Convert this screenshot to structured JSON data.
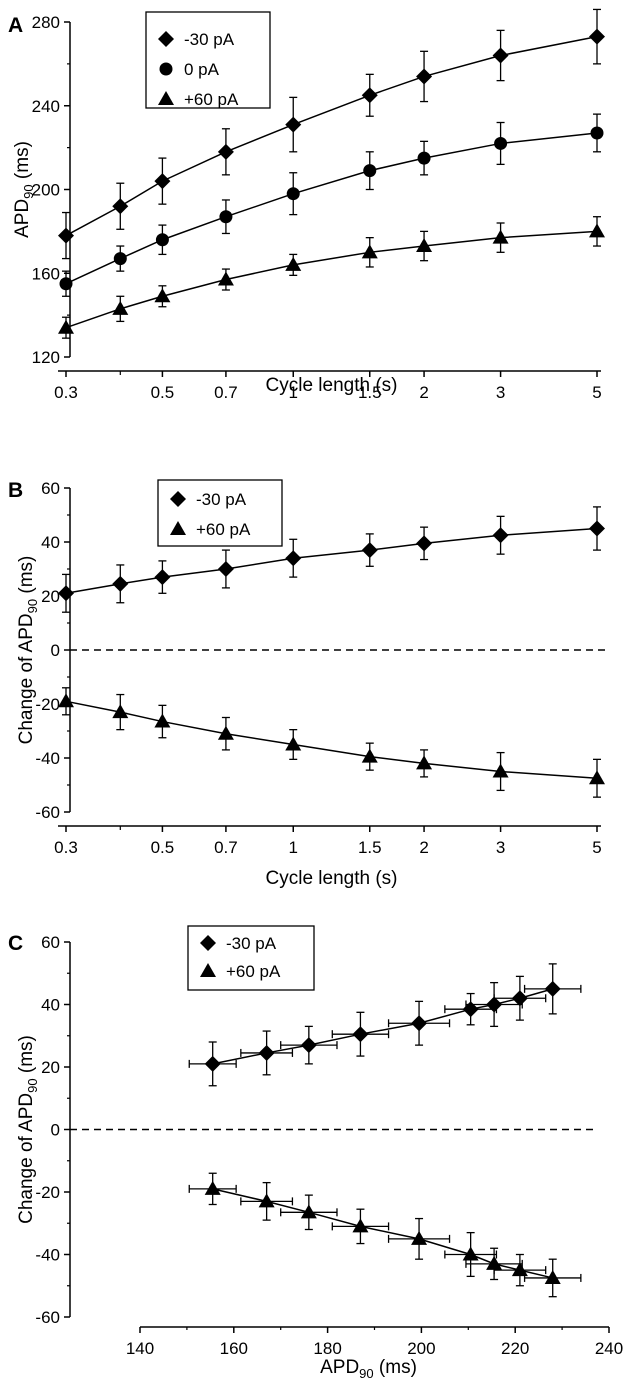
{
  "chart_data": [
    {
      "panel": "A",
      "type": "line",
      "xscale": "log",
      "xlabel": "Cycle length (s)",
      "ylabel_main": "APD",
      "ylabel_sub": "90",
      "ylabel_unit": " (ms)",
      "xlim": [
        0.3,
        5
      ],
      "ylim": [
        120,
        280
      ],
      "x_ticks": [
        0.3,
        0.5,
        0.7,
        1,
        1.5,
        2,
        3,
        5
      ],
      "x_tick_labels": [
        "0.3",
        "0.5",
        "0.7",
        "1",
        "1.5",
        "2",
        "3",
        "5"
      ],
      "y_ticks": [
        120,
        160,
        200,
        240,
        280
      ],
      "y_tick_labels": [
        "120",
        "160",
        "200",
        "240",
        "280"
      ],
      "x": [
        0.3,
        0.4,
        0.5,
        0.7,
        1,
        1.5,
        2,
        3,
        5
      ],
      "legend_position": "top-left",
      "series": [
        {
          "name": "-30 pA",
          "marker": "diamond",
          "values": [
            178,
            192,
            204,
            218,
            231,
            245,
            254,
            264,
            273
          ],
          "yerr": [
            11,
            11,
            11,
            11,
            13,
            10,
            12,
            12,
            13
          ]
        },
        {
          "name": "0 pA",
          "marker": "circle",
          "values": [
            155,
            167,
            176,
            187,
            198,
            209,
            215,
            222,
            227
          ],
          "yerr": [
            6,
            6,
            7,
            8,
            10,
            9,
            8,
            10,
            9
          ]
        },
        {
          "name": "+60 pA",
          "marker": "triangle",
          "values": [
            134,
            143,
            149,
            157,
            164,
            170,
            173,
            177,
            180
          ],
          "yerr": [
            5,
            6,
            5,
            5,
            5,
            7,
            7,
            7,
            7
          ]
        }
      ]
    },
    {
      "panel": "B",
      "type": "line",
      "xscale": "log",
      "xlabel": "Cycle length (s)",
      "ylabel_main": "Change of APD",
      "ylabel_sub": "90",
      "ylabel_unit": " (ms)",
      "xlim": [
        0.3,
        5
      ],
      "ylim": [
        -60,
        60
      ],
      "zero_line": true,
      "x_ticks": [
        0.3,
        0.5,
        0.7,
        1,
        1.5,
        2,
        3,
        5
      ],
      "x_tick_labels": [
        "0.3",
        "0.5",
        "0.7",
        "1",
        "1.5",
        "2",
        "3",
        "5"
      ],
      "y_ticks": [
        -60,
        -40,
        -20,
        0,
        20,
        40,
        60
      ],
      "y_tick_labels": [
        "-60",
        "-40",
        "-20",
        "0",
        "20",
        "40",
        "60"
      ],
      "x": [
        0.3,
        0.4,
        0.5,
        0.7,
        1,
        1.5,
        2,
        3,
        5
      ],
      "legend_position": "top-left",
      "series": [
        {
          "name": "-30 pA",
          "marker": "diamond",
          "values": [
            21,
            24.5,
            27,
            30,
            34,
            37,
            39.5,
            42.5,
            45
          ],
          "yerr": [
            7,
            7,
            6,
            7,
            7,
            6,
            6,
            7,
            8
          ]
        },
        {
          "name": "+60 pA",
          "marker": "triangle",
          "values": [
            -19,
            -23,
            -26.5,
            -31,
            -35,
            -39.5,
            -42,
            -45,
            -47.5
          ],
          "yerr": [
            5,
            6.5,
            6,
            6,
            5.5,
            5,
            5,
            7,
            7
          ]
        }
      ]
    },
    {
      "panel": "C",
      "type": "line",
      "xscale": "linear",
      "xlabel_main": "APD",
      "xlabel_sub": "90",
      "xlabel_unit": " (ms)",
      "ylabel_main": "Change of APD",
      "ylabel_sub": "90",
      "ylabel_unit": " (ms)",
      "xlim": [
        140,
        240
      ],
      "ylim": [
        -60,
        60
      ],
      "zero_line": true,
      "x_ticks": [
        140,
        160,
        180,
        200,
        220,
        240
      ],
      "x_tick_labels": [
        "140",
        "160",
        "180",
        "200",
        "220",
        "240"
      ],
      "y_ticks": [
        -60,
        -40,
        -20,
        0,
        20,
        40,
        60
      ],
      "y_tick_labels": [
        "-60",
        "-40",
        "-20",
        "0",
        "20",
        "40",
        "60"
      ],
      "x": [
        155.5,
        167,
        176,
        187,
        199.5,
        210.5,
        215.5,
        221,
        228
      ],
      "xerr": [
        5,
        5.5,
        6,
        6,
        6.5,
        5.5,
        6,
        5.5,
        6
      ],
      "legend_position": "top-left",
      "series": [
        {
          "name": "-30 pA",
          "marker": "diamond",
          "values": [
            21,
            24.5,
            27,
            30.5,
            34,
            38.5,
            40,
            42,
            45
          ],
          "yerr": [
            7,
            7,
            6,
            7,
            7,
            5,
            7,
            7,
            8
          ]
        },
        {
          "name": "+60 pA",
          "marker": "triangle",
          "values": [
            -19,
            -23,
            -26.5,
            -31,
            -35,
            -40,
            -43,
            -45,
            -47.5
          ],
          "yerr": [
            5,
            6,
            5.5,
            5.5,
            6.5,
            7,
            5,
            5,
            6
          ]
        }
      ]
    }
  ]
}
